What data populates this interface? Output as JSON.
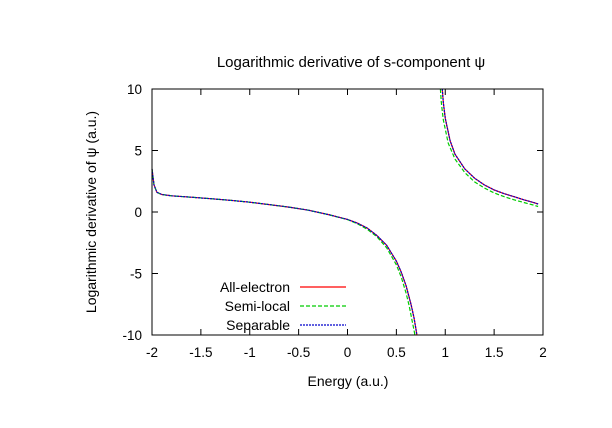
{
  "chart_data": {
    "type": "line",
    "title": "Logarithmic derivative of s-component ψ",
    "xlabel": "Energy (a.u.)",
    "ylabel": "Logarithmic derivative of ψ (a.u.)",
    "xlim": [
      -2,
      2
    ],
    "ylim": [
      -10,
      10
    ],
    "xticks": [
      -2,
      -1.5,
      -1,
      -0.5,
      0,
      0.5,
      1,
      1.5,
      2
    ],
    "xtick_labels": [
      "-2",
      "-1.5",
      "-1",
      "-0.5",
      "0",
      "0.5",
      "1",
      "1.5",
      "2"
    ],
    "yticks": [
      -10,
      -5,
      0,
      5,
      10
    ],
    "ytick_labels": [
      "-10",
      "-5",
      "0",
      "5",
      "10"
    ],
    "grid": false,
    "legend_position": "bottom-left",
    "series": [
      {
        "name": "All-electron",
        "color": "#ff0000",
        "dash": "solid",
        "segments": [
          [
            [
              -2.0,
              3.5
            ],
            [
              -1.98,
              2.2
            ],
            [
              -1.95,
              1.6
            ],
            [
              -1.9,
              1.42
            ],
            [
              -1.8,
              1.32
            ],
            [
              -1.6,
              1.2
            ],
            [
              -1.4,
              1.08
            ],
            [
              -1.2,
              0.95
            ],
            [
              -1.0,
              0.8
            ],
            [
              -0.8,
              0.6
            ],
            [
              -0.6,
              0.4
            ],
            [
              -0.4,
              0.15
            ],
            [
              -0.2,
              -0.2
            ],
            [
              0.0,
              -0.6
            ],
            [
              0.1,
              -0.9
            ],
            [
              0.2,
              -1.3
            ],
            [
              0.3,
              -1.9
            ],
            [
              0.4,
              -2.7
            ],
            [
              0.5,
              -4.0
            ],
            [
              0.55,
              -4.9
            ],
            [
              0.6,
              -6.0
            ],
            [
              0.65,
              -7.5
            ],
            [
              0.68,
              -8.6
            ],
            [
              0.7,
              -9.5
            ],
            [
              0.71,
              -10.0
            ]
          ],
          [
            [
              0.97,
              10.0
            ],
            [
              0.98,
              8.9
            ],
            [
              1.0,
              7.6
            ],
            [
              1.05,
              5.8
            ],
            [
              1.1,
              4.7
            ],
            [
              1.2,
              3.5
            ],
            [
              1.3,
              2.75
            ],
            [
              1.4,
              2.2
            ],
            [
              1.5,
              1.8
            ],
            [
              1.6,
              1.5
            ],
            [
              1.7,
              1.25
            ],
            [
              1.8,
              1.0
            ],
            [
              1.9,
              0.78
            ],
            [
              1.95,
              0.65
            ]
          ]
        ]
      },
      {
        "name": "Semi-local",
        "color": "#00cc00",
        "dash": "dashed",
        "segments": [
          [
            [
              -2.0,
              3.5
            ],
            [
              -1.98,
              2.2
            ],
            [
              -1.95,
              1.6
            ],
            [
              -1.9,
              1.42
            ],
            [
              -1.8,
              1.32
            ],
            [
              -1.6,
              1.2
            ],
            [
              -1.4,
              1.08
            ],
            [
              -1.2,
              0.95
            ],
            [
              -1.0,
              0.8
            ],
            [
              -0.8,
              0.6
            ],
            [
              -0.6,
              0.4
            ],
            [
              -0.4,
              0.15
            ],
            [
              -0.2,
              -0.2
            ],
            [
              0.0,
              -0.62
            ],
            [
              0.1,
              -0.95
            ],
            [
              0.2,
              -1.4
            ],
            [
              0.3,
              -2.0
            ],
            [
              0.4,
              -2.9
            ],
            [
              0.5,
              -4.3
            ],
            [
              0.55,
              -5.3
            ],
            [
              0.6,
              -6.6
            ],
            [
              0.63,
              -7.6
            ],
            [
              0.66,
              -8.8
            ],
            [
              0.68,
              -9.6
            ],
            [
              0.69,
              -10.0
            ]
          ],
          [
            [
              0.95,
              10.0
            ],
            [
              0.96,
              8.9
            ],
            [
              0.98,
              7.5
            ],
            [
              1.03,
              5.6
            ],
            [
              1.1,
              4.3
            ],
            [
              1.2,
              3.2
            ],
            [
              1.3,
              2.45
            ],
            [
              1.4,
              1.95
            ],
            [
              1.5,
              1.55
            ],
            [
              1.6,
              1.25
            ],
            [
              1.7,
              1.0
            ],
            [
              1.8,
              0.78
            ],
            [
              1.9,
              0.57
            ],
            [
              1.95,
              0.45
            ]
          ]
        ]
      },
      {
        "name": "Separable",
        "color": "#0000cc",
        "dash": "dotted",
        "segments": [
          [
            [
              -2.0,
              3.5
            ],
            [
              -1.98,
              2.2
            ],
            [
              -1.95,
              1.6
            ],
            [
              -1.9,
              1.42
            ],
            [
              -1.8,
              1.32
            ],
            [
              -1.6,
              1.2
            ],
            [
              -1.4,
              1.08
            ],
            [
              -1.2,
              0.95
            ],
            [
              -1.0,
              0.8
            ],
            [
              -0.8,
              0.6
            ],
            [
              -0.6,
              0.4
            ],
            [
              -0.4,
              0.15
            ],
            [
              -0.2,
              -0.2
            ],
            [
              0.0,
              -0.6
            ],
            [
              0.1,
              -0.9
            ],
            [
              0.2,
              -1.3
            ],
            [
              0.3,
              -1.9
            ],
            [
              0.4,
              -2.7
            ],
            [
              0.5,
              -4.0
            ],
            [
              0.55,
              -4.9
            ],
            [
              0.6,
              -6.0
            ],
            [
              0.65,
              -7.5
            ],
            [
              0.68,
              -8.6
            ],
            [
              0.7,
              -9.5
            ],
            [
              0.71,
              -10.0
            ]
          ],
          [
            [
              0.97,
              10.0
            ],
            [
              0.98,
              8.9
            ],
            [
              1.0,
              7.6
            ],
            [
              1.05,
              5.8
            ],
            [
              1.1,
              4.7
            ],
            [
              1.2,
              3.5
            ],
            [
              1.3,
              2.75
            ],
            [
              1.4,
              2.2
            ],
            [
              1.5,
              1.8
            ],
            [
              1.6,
              1.5
            ],
            [
              1.7,
              1.25
            ],
            [
              1.8,
              1.0
            ],
            [
              1.9,
              0.78
            ],
            [
              1.95,
              0.65
            ]
          ]
        ]
      }
    ]
  }
}
